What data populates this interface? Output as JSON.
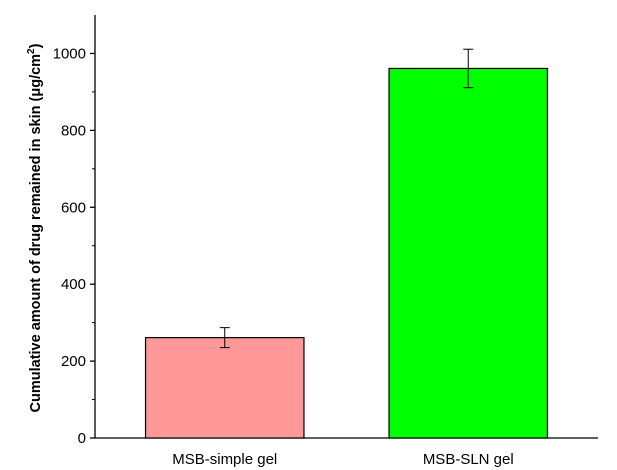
{
  "chart_data": {
    "type": "bar",
    "categories": [
      "MSB-simple gel",
      "MSB-SLN gel"
    ],
    "values": [
      261,
      961
    ],
    "errors": [
      26,
      50
    ],
    "colors": [
      "#FF9999",
      "#00FF00"
    ],
    "ylabel": {
      "main": "Cumulative amount of drug remained in skin (μg/cm",
      "sup": "2",
      "close": ")"
    },
    "ylim": [
      0,
      1100
    ],
    "yticks": [
      0,
      200,
      400,
      600,
      800,
      1000
    ],
    "grid": false,
    "legend": "none"
  }
}
